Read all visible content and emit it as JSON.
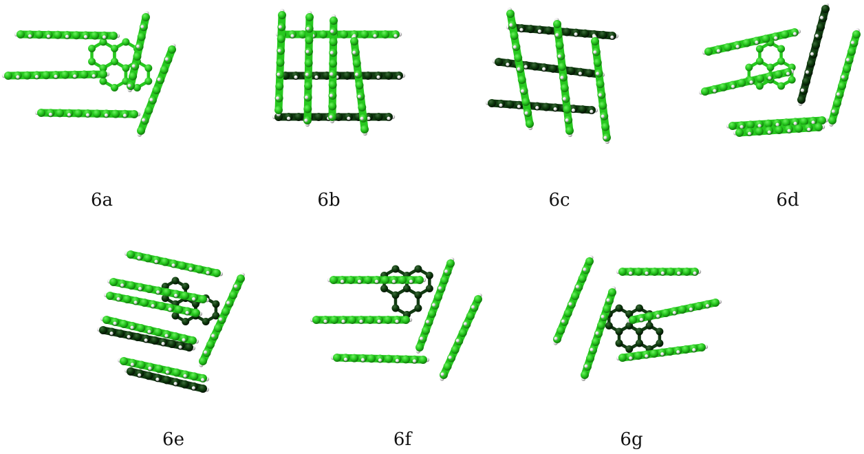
{
  "figure": {
    "panels": [
      {
        "id": "6a",
        "label": "6a"
      },
      {
        "id": "6b",
        "label": "6b"
      },
      {
        "id": "6c",
        "label": "6c"
      },
      {
        "id": "6d",
        "label": "6d"
      },
      {
        "id": "6e",
        "label": "6e"
      },
      {
        "id": "6f",
        "label": "6f"
      },
      {
        "id": "6g",
        "label": "6g"
      }
    ]
  },
  "colors": {
    "carbon_bright": "#27c81f",
    "carbon_light": "#6cf060",
    "carbon_dark": "#0d3b0c",
    "hydrogen": "#e2e2e2",
    "bond_dark": "#123a12"
  }
}
